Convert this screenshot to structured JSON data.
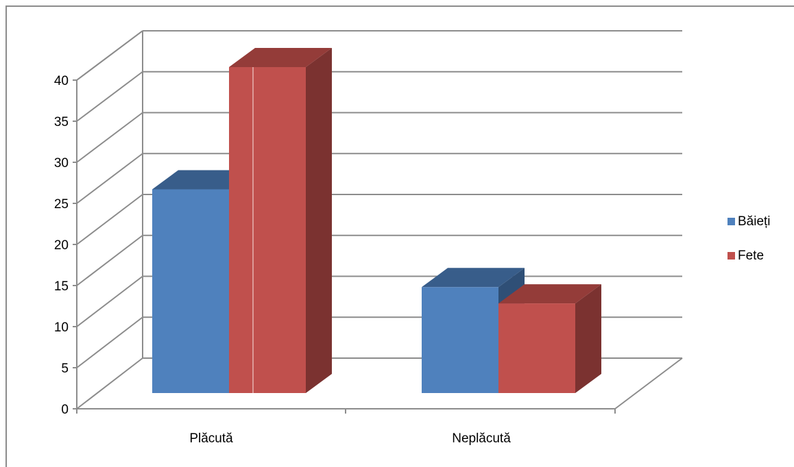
{
  "chart_data": {
    "type": "bar",
    "categories": [
      "Plăcută",
      "Neplăcută"
    ],
    "series": [
      {
        "name": "Băieți",
        "values": [
          25,
          13
        ],
        "color": "#4f81bd",
        "top_color": "#385d8a",
        "side_color": "#2f4f76"
      },
      {
        "name": "Fete",
        "values": [
          40,
          11
        ],
        "color": "#c0504d",
        "top_color": "#943c39",
        "side_color": "#7b3230"
      }
    ],
    "ylim": [
      0,
      40
    ],
    "yticks": [
      0,
      5,
      10,
      15,
      20,
      25,
      30,
      35,
      40
    ],
    "grid": true,
    "three_d": true,
    "legend": "right",
    "title": "",
    "xlabel": "",
    "ylabel": ""
  }
}
